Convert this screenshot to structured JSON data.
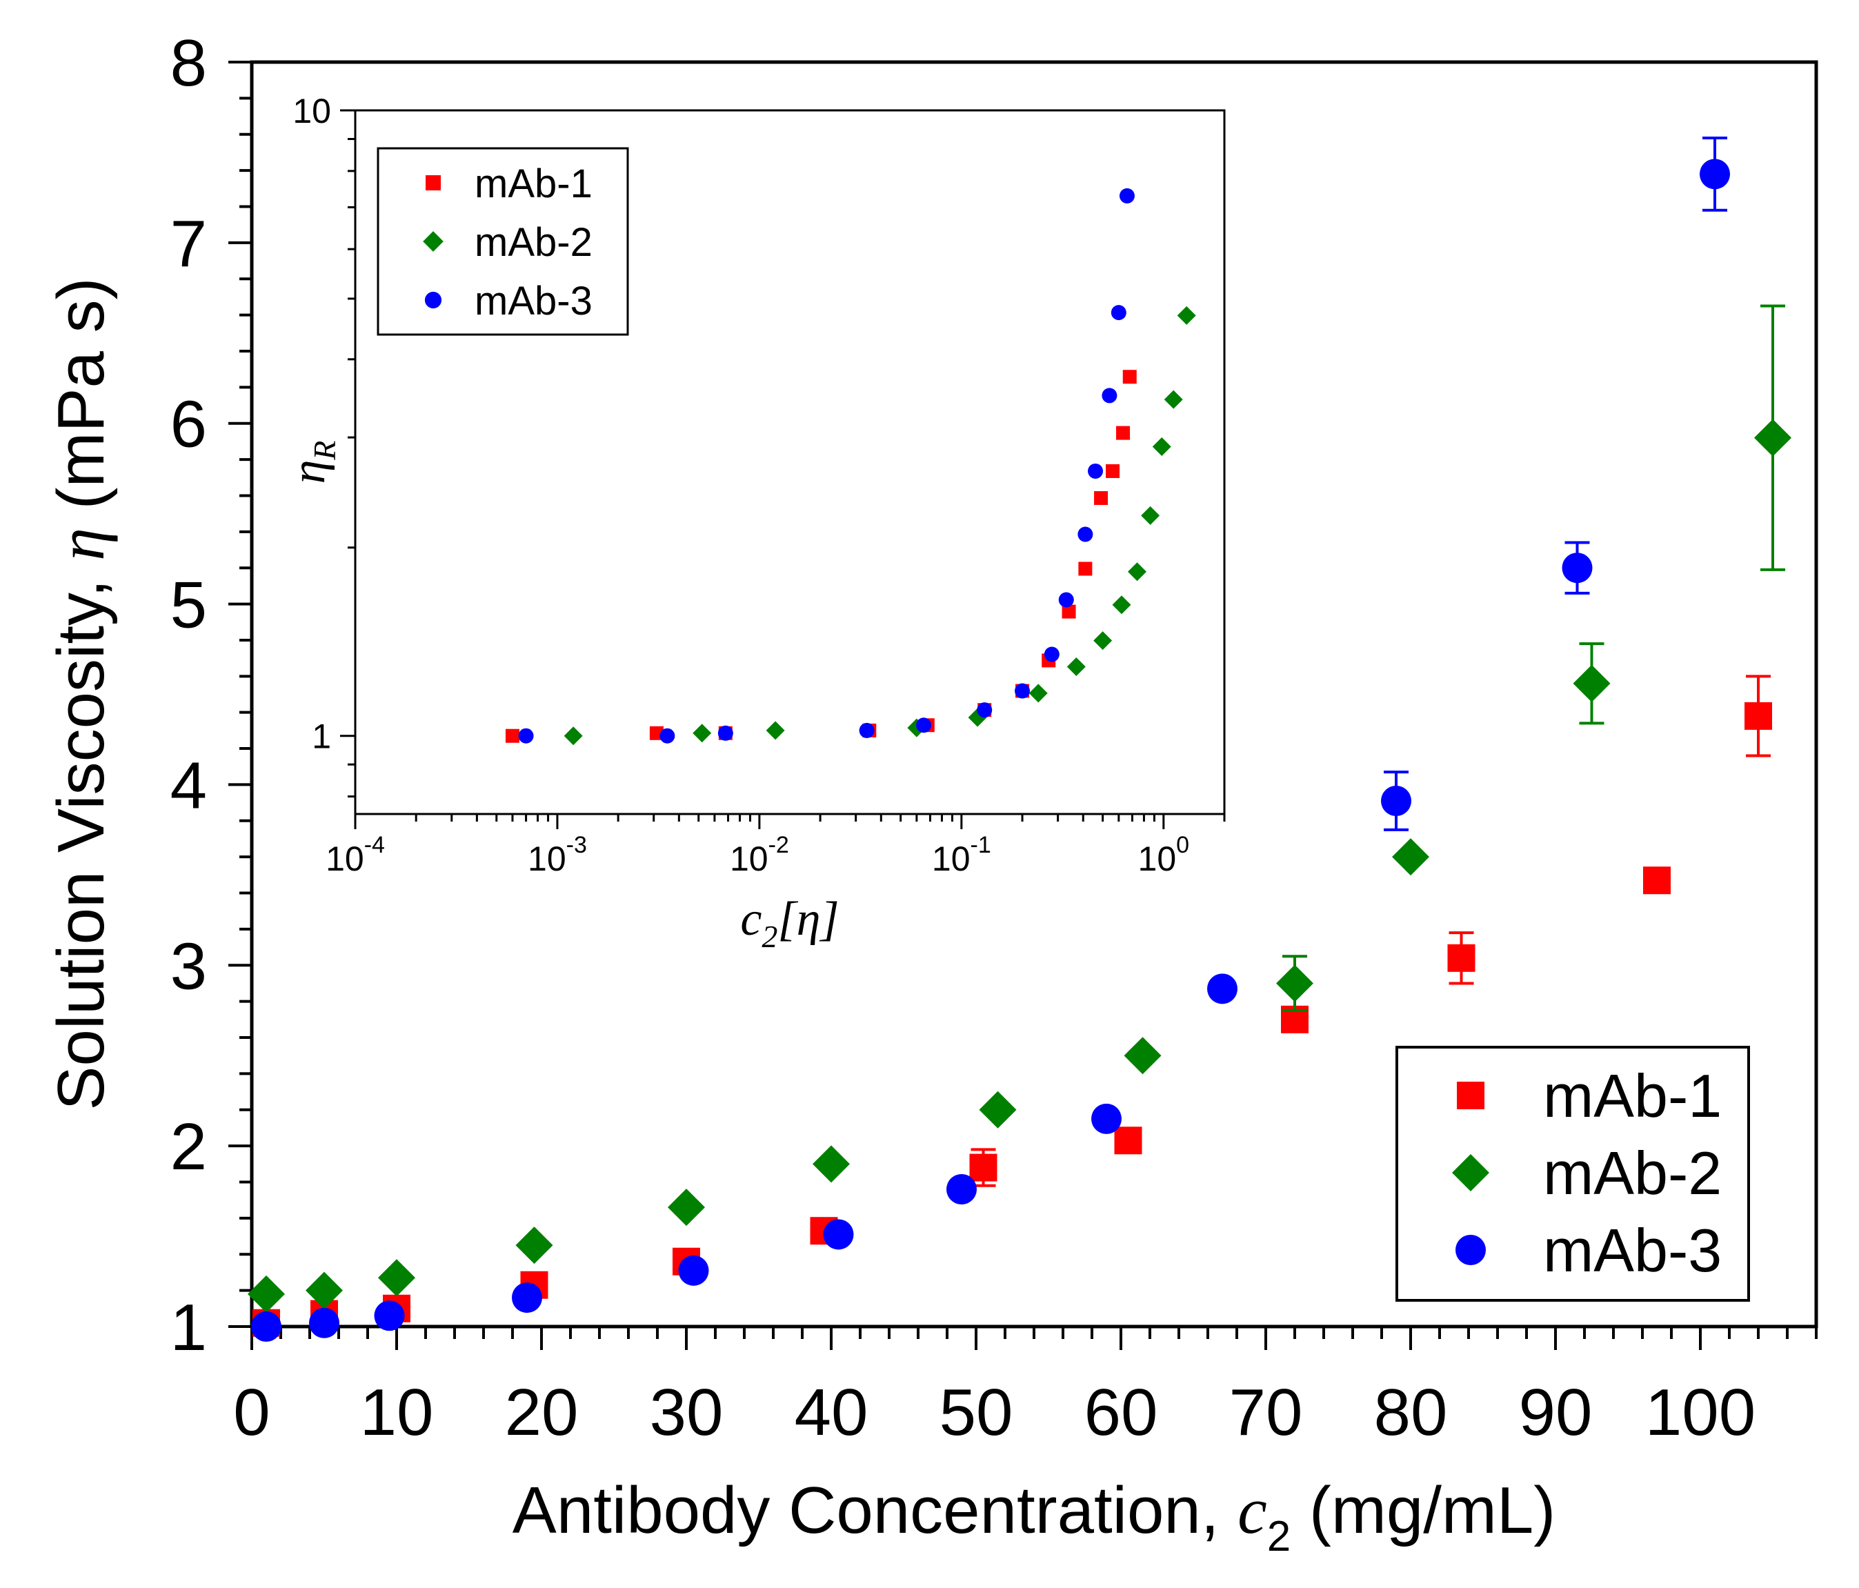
{
  "chart_data": [
    {
      "type": "scatter",
      "xlabel_parts": [
        "Antibody Concentration, ",
        "c",
        "2",
        " (mg/mL)"
      ],
      "ylabel_parts": [
        "Solution Viscosity, ",
        "η",
        " (mPa s)"
      ],
      "xlim": [
        0,
        108
      ],
      "ylim": [
        1,
        8
      ],
      "x_ticks": [
        "0",
        "10",
        "20",
        "30",
        "40",
        "50",
        "60",
        "70",
        "80",
        "90",
        "100"
      ],
      "y_ticks": [
        "1",
        "2",
        "3",
        "4",
        "5",
        "6",
        "7",
        "8"
      ],
      "legend": {
        "position": "bottom-right"
      },
      "series": [
        {
          "name": "mAb-1",
          "marker": "square",
          "color": "#ff0000",
          "x": [
            1,
            5,
            10,
            19.5,
            30,
            39.5,
            50.5,
            60.5,
            72,
            83.5,
            97,
            104
          ],
          "y": [
            1.02,
            1.07,
            1.1,
            1.23,
            1.36,
            1.53,
            1.88,
            2.03,
            2.7,
            3.04,
            3.47,
            4.38
          ],
          "err": [
            0,
            0,
            0,
            0,
            0,
            0,
            0.1,
            0,
            0,
            0.14,
            0,
            0.22
          ]
        },
        {
          "name": "mAb-2",
          "marker": "diamond",
          "color": "#008000",
          "x": [
            1,
            5,
            10,
            19.5,
            30,
            40,
            51.5,
            61.5,
            72,
            80,
            92.5,
            105
          ],
          "y": [
            1.18,
            1.2,
            1.27,
            1.45,
            1.66,
            1.9,
            2.2,
            2.5,
            2.9,
            3.6,
            4.56,
            5.92
          ],
          "err": [
            0,
            0,
            0,
            0,
            0,
            0,
            0,
            0,
            0.15,
            0,
            0.22,
            0.73
          ]
        },
        {
          "name": "mAb-3",
          "marker": "circle",
          "color": "#0000ff",
          "x": [
            1,
            5,
            9.5,
            19,
            30.5,
            40.5,
            49,
            59,
            67,
            79,
            91.5,
            101
          ],
          "y": [
            1.0,
            1.02,
            1.06,
            1.16,
            1.31,
            1.51,
            1.76,
            2.15,
            2.87,
            3.91,
            5.2,
            7.38
          ],
          "err": [
            0,
            0,
            0,
            0,
            0,
            0,
            0,
            0,
            0,
            0.16,
            0.14,
            0.2
          ]
        }
      ]
    },
    {
      "type": "scatter",
      "inset": true,
      "xscale": "log",
      "yscale": "log",
      "xlabel_parts": [
        "c",
        "2",
        "[η]"
      ],
      "ylabel_parts": [
        "η",
        "R"
      ],
      "xlim": [
        0.0001,
        2
      ],
      "ylim": [
        0.75,
        10
      ],
      "x_ticks": [
        {
          "base": "10",
          "exp": "-4"
        },
        {
          "base": "10",
          "exp": "-3"
        },
        {
          "base": "10",
          "exp": "-2"
        },
        {
          "base": "10",
          "exp": "-1"
        },
        {
          "base": "10",
          "exp": "0"
        }
      ],
      "y_ticks": [
        "1",
        "10"
      ],
      "legend": {
        "position": "top-left"
      },
      "series": [
        {
          "name": "mAb-1",
          "marker": "square",
          "color": "#ff0000",
          "x": [
            0.0006,
            0.0031,
            0.0068,
            0.035,
            0.068,
            0.13,
            0.2,
            0.27,
            0.34,
            0.41,
            0.49,
            0.56,
            0.63,
            0.68
          ],
          "y": [
            1.0,
            1.01,
            1.01,
            1.02,
            1.04,
            1.1,
            1.18,
            1.32,
            1.58,
            1.85,
            2.4,
            2.65,
            3.05,
            3.75
          ]
        },
        {
          "name": "mAb-2",
          "marker": "diamond",
          "color": "#008000",
          "x": [
            0.0012,
            0.0052,
            0.012,
            0.06,
            0.12,
            0.24,
            0.37,
            0.5,
            0.62,
            0.74,
            0.86,
            0.98,
            1.12,
            1.3
          ],
          "y": [
            1.0,
            1.01,
            1.02,
            1.03,
            1.07,
            1.17,
            1.29,
            1.42,
            1.62,
            1.83,
            2.25,
            2.9,
            3.45,
            4.7
          ]
        },
        {
          "name": "mAb-3",
          "marker": "circle",
          "color": "#0000ff",
          "x": [
            0.0007,
            0.0035,
            0.0068,
            0.034,
            0.065,
            0.13,
            0.2,
            0.28,
            0.33,
            0.41,
            0.46,
            0.54,
            0.6,
            0.66
          ],
          "y": [
            1.0,
            1.0,
            1.01,
            1.02,
            1.04,
            1.1,
            1.18,
            1.35,
            1.65,
            2.1,
            2.65,
            3.5,
            4.75,
            7.3
          ]
        }
      ]
    }
  ]
}
